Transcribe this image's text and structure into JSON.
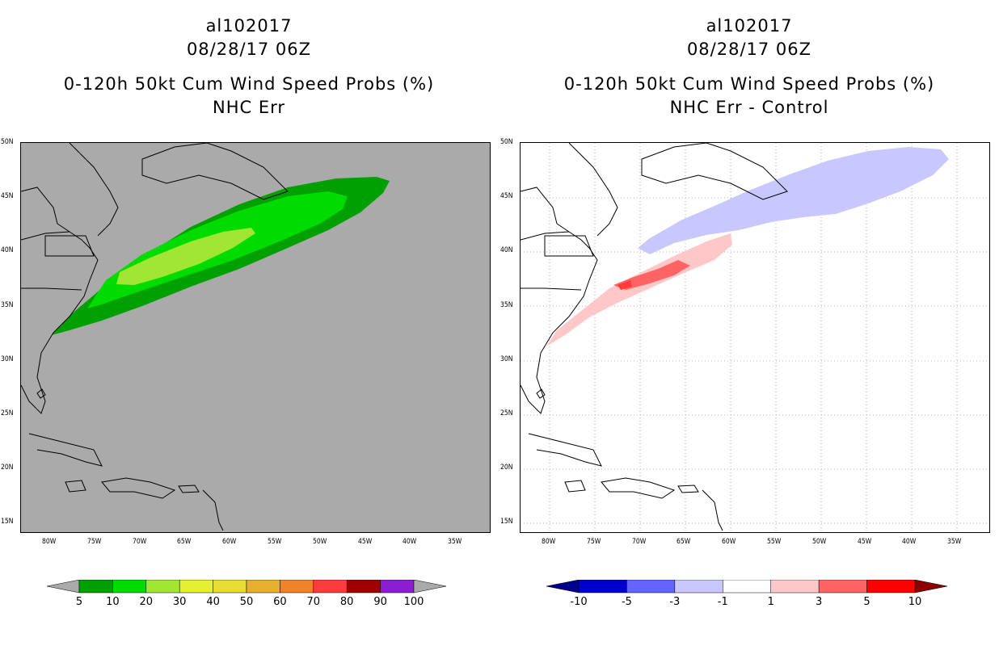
{
  "left": {
    "storm_id": "al102017",
    "datetime": "08/28/17 06Z",
    "product": "0-120h 50kt Cum Wind Speed Probs (%)",
    "subtitle": "NHC Err",
    "colorbar_labels": [
      "5",
      "10",
      "20",
      "30",
      "40",
      "50",
      "60",
      "70",
      "80",
      "90",
      "100"
    ],
    "colorbar_colors": [
      "#00a000",
      "#00dc00",
      "#a0e632",
      "#e6f032",
      "#e6dc32",
      "#e6af2d",
      "#f08228",
      "#fa3c3c",
      "#a00000",
      "#8c1ed2"
    ],
    "background_color": "#aaaaaa"
  },
  "right": {
    "storm_id": "al102017",
    "datetime": "08/28/17 06Z",
    "product": "0-120h 50kt Cum Wind Speed Probs (%)",
    "subtitle": "NHC Err - Control",
    "colorbar_labels": [
      "-10",
      "-5",
      "-3",
      "-1",
      "1",
      "3",
      "5",
      "10"
    ],
    "colorbar_colors": [
      "#0000cc",
      "#6464ff",
      "#c8c8ff",
      "#ffffff",
      "#ffc8c8",
      "#ff6464",
      "#ff0000"
    ],
    "below_color": "#00008c",
    "above_color": "#8c0000",
    "background_color": "#ffffff"
  },
  "axes": {
    "lat_labels": [
      "50N",
      "45N",
      "40N",
      "35N",
      "30N",
      "25N",
      "20N",
      "15N"
    ],
    "lon_labels": [
      "80W",
      "75W",
      "70W",
      "65W",
      "60W",
      "55W",
      "50W",
      "45W",
      "40W",
      "35W"
    ]
  }
}
